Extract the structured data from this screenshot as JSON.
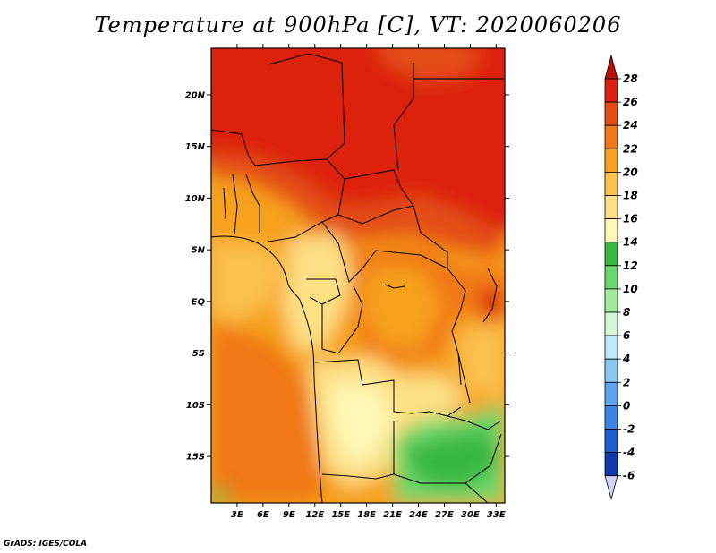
{
  "title": "Temperature at 900hPa [C], VT: 2020060206",
  "credit": "GrADS: IGES/COLA",
  "map": {
    "lat_range": [
      -19.5,
      24.5
    ],
    "lon_range": [
      0,
      34
    ],
    "lat_ticks": [
      {
        "value": 20,
        "label": "20N"
      },
      {
        "value": 15,
        "label": "15N"
      },
      {
        "value": 10,
        "label": "10N"
      },
      {
        "value": 5,
        "label": "5N"
      },
      {
        "value": 0,
        "label": "EQ"
      },
      {
        "value": -5,
        "label": "5S"
      },
      {
        "value": -10,
        "label": "10S"
      },
      {
        "value": -15,
        "label": "15S"
      }
    ],
    "lon_ticks": [
      {
        "value": 3,
        "label": "3E"
      },
      {
        "value": 6,
        "label": "6E"
      },
      {
        "value": 9,
        "label": "9E"
      },
      {
        "value": 12,
        "label": "12E"
      },
      {
        "value": 15,
        "label": "15E"
      },
      {
        "value": 18,
        "label": "18E"
      },
      {
        "value": 21,
        "label": "21E"
      },
      {
        "value": 24,
        "label": "24E"
      },
      {
        "value": 27,
        "label": "27E"
      },
      {
        "value": 30,
        "label": "30E"
      },
      {
        "value": 33,
        "label": "33E"
      }
    ]
  },
  "colorbar": {
    "levels": [
      "28",
      "26",
      "24",
      "22",
      "20",
      "18",
      "16",
      "14",
      "12",
      "10",
      "8",
      "6",
      "4",
      "2",
      "0",
      "-2",
      "-4",
      "-6"
    ],
    "colors": [
      "#dc2010",
      "#e44e14",
      "#f07818",
      "#f7a11e",
      "#fbc04e",
      "#fde085",
      "#fef8b6",
      "#39b73f",
      "#6bd66b",
      "#a2eaa0",
      "#d4f6d2",
      "#bfe6fb",
      "#8ac8f3",
      "#5aa6ec",
      "#3a85e2",
      "#1e5fd0",
      "#0e3aa8",
      "#0a1478"
    ],
    "overflow_colors": {
      "high": "#b81008",
      "low": "#d0d4f8"
    }
  }
}
